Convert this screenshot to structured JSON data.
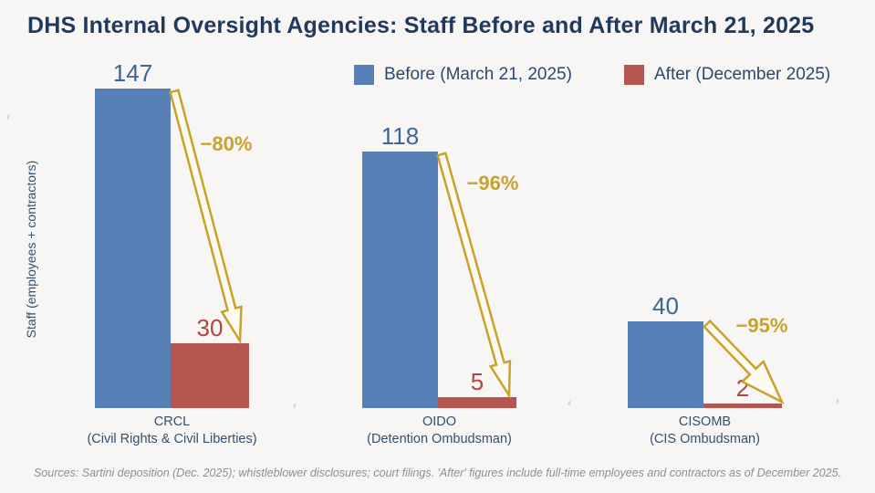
{
  "title": "DHS Internal Oversight Agencies: Staff Before and After March 21, 2025",
  "legend": [
    {
      "label": "Before (March 21, 2025)",
      "color": "#5781b6"
    },
    {
      "label": "After (December 2025)",
      "color": "#b2564f"
    }
  ],
  "footer": "Sources: Sartini deposition (Dec. 2025); whistleblower disclosures; court filings. 'After' figures include full-time employees and contractors as of December 2025.",
  "colors": {
    "background": "#f7f6f4",
    "title_text": "#1f3a5c",
    "axis_text": "#33506f",
    "value_before": "#3d6496",
    "value_after": "#b0463e",
    "accent_gold": "#c8a12e",
    "arrow_fill": "#fcfaf1",
    "arrow_stroke": "#c9a22c",
    "footer_text": "#8f8f8f"
  },
  "chart_data": {
    "type": "bar",
    "title": "DHS Internal Oversight Agencies: Staff Before and After March 21, 2025",
    "xlabel": "",
    "ylabel": "Staff (employees + contractors)",
    "ylim": [
      0,
      150
    ],
    "grid": false,
    "legend_position": "top",
    "value_labels_shown": true,
    "categories": [
      {
        "code": "CRCL",
        "sublabel": "(Civil Rights & Civil Liberties)",
        "before": 147,
        "after": 30,
        "change": "−80%"
      },
      {
        "code": "OIDO",
        "sublabel": "(Detention Ombudsman)",
        "before": 118,
        "after": 5,
        "change": "−96%"
      },
      {
        "code": "CISOMB",
        "sublabel": "(CIS Ombudsman)",
        "before": 40,
        "after": 2,
        "change": "−95%"
      }
    ],
    "series": [
      {
        "name": "Before (March 21, 2025)",
        "values": [
          147,
          118,
          40
        ],
        "color": "#5781b6"
      },
      {
        "name": "After (December 2025)",
        "values": [
          30,
          5,
          2
        ],
        "color": "#b2564f"
      }
    ],
    "annotations": [
      "−80%",
      "−96%",
      "−95%"
    ]
  }
}
